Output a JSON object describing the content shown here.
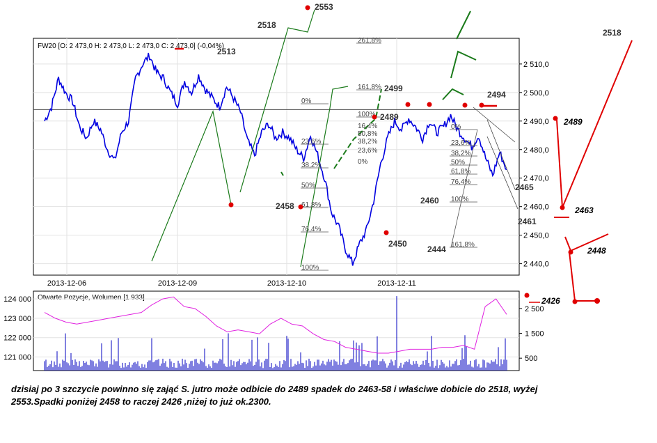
{
  "header": {
    "main": "FW20 [O: 2 473,0  H: 2 473,0  L: 2 473,0  C: 2 473,0] (-0,04%)",
    "lower": "Otwarte Pozycje, Wolumen [1 933]"
  },
  "chart_data": {
    "type": "line",
    "main_panel": {
      "ylim": [
        2436,
        2519
      ],
      "yticks": [
        "2 510,0",
        "2 500,0",
        "2 490,0",
        "2 480,0",
        "2 470,0",
        "2 460,0",
        "2 450,0",
        "2 440,0"
      ],
      "ytick_values": [
        2510,
        2500,
        2490,
        2480,
        2470,
        2460,
        2450,
        2440
      ],
      "x_labels": [
        "2013-12-06",
        "2013-12-09",
        "2013-12-10",
        "2013-12-11"
      ],
      "price_series": [
        2490,
        2495,
        2505,
        2500,
        2497,
        2488,
        2484,
        2490,
        2487,
        2480,
        2476,
        2486,
        2490,
        2505,
        2510,
        2513,
        2507,
        2505,
        2500,
        2496,
        2504,
        2500,
        2506,
        2501,
        2498,
        2495,
        2502,
        2498,
        2493,
        2483,
        2478,
        2486,
        2489,
        2484,
        2486,
        2484,
        2480,
        2477,
        2485,
        2478,
        2470,
        2458,
        2453,
        2445,
        2440,
        2447,
        2452,
        2462,
        2475,
        2484,
        2490,
        2487,
        2491,
        2488,
        2484,
        2490,
        2486,
        2488,
        2492,
        2487,
        2484,
        2481,
        2485,
        2477,
        2471,
        2479,
        2473
      ],
      "reference_line": 2494,
      "annotations": [
        "2518",
        "2553",
        "2513",
        "2499",
        "2489",
        "2494",
        "2465",
        "2461",
        "2458",
        "2460",
        "2450",
        "2444"
      ],
      "fibo_left": [
        "0%",
        "23,6%",
        "38,2%",
        "50%",
        "61,8%",
        "76,4%",
        "100%"
      ],
      "fibo_mid": [
        "261,8%",
        "161,8%",
        "100%",
        "16,4%",
        "50,8%",
        "38,2%",
        "23,6%",
        "0%"
      ],
      "fibo_right": [
        "0%",
        "23,6%",
        "38,2%",
        "50%",
        "61,8%",
        "76,4%",
        "100%",
        "161,8%"
      ]
    },
    "lower_panel": {
      "open_interest_ticks": [
        "124 000",
        "123 000",
        "122 000",
        "121 000"
      ],
      "volume_ticks": [
        "2 500",
        "1 500",
        "500"
      ],
      "open_interest": [
        123300,
        123000,
        122800,
        122700,
        122800,
        122900,
        123000,
        123100,
        123200,
        123300,
        123700,
        124000,
        124100,
        123600,
        123500,
        123100,
        122600,
        122300,
        122400,
        122300,
        122200,
        122700,
        123000,
        122700,
        122600,
        122200,
        121900,
        121800,
        121500,
        121400,
        121300,
        121200,
        121200,
        121300,
        121400,
        121400,
        121400,
        121500,
        121500,
        121600,
        121400,
        123600,
        124000,
        123200
      ]
    },
    "side_annotations": [
      "2518",
      "2489",
      "2463",
      "2448",
      "2426"
    ]
  },
  "caption": {
    "line1": "dzisiaj po 3 szczycie powinno się zająć S. jutro może  odbicie do 2489 spadek do 2463-58 i właściwe dobicie do 2518, wyżej",
    "line2": "2553.Spadki poniżej 2458 to raczej 2426 ,niżej to już ok.2300."
  }
}
